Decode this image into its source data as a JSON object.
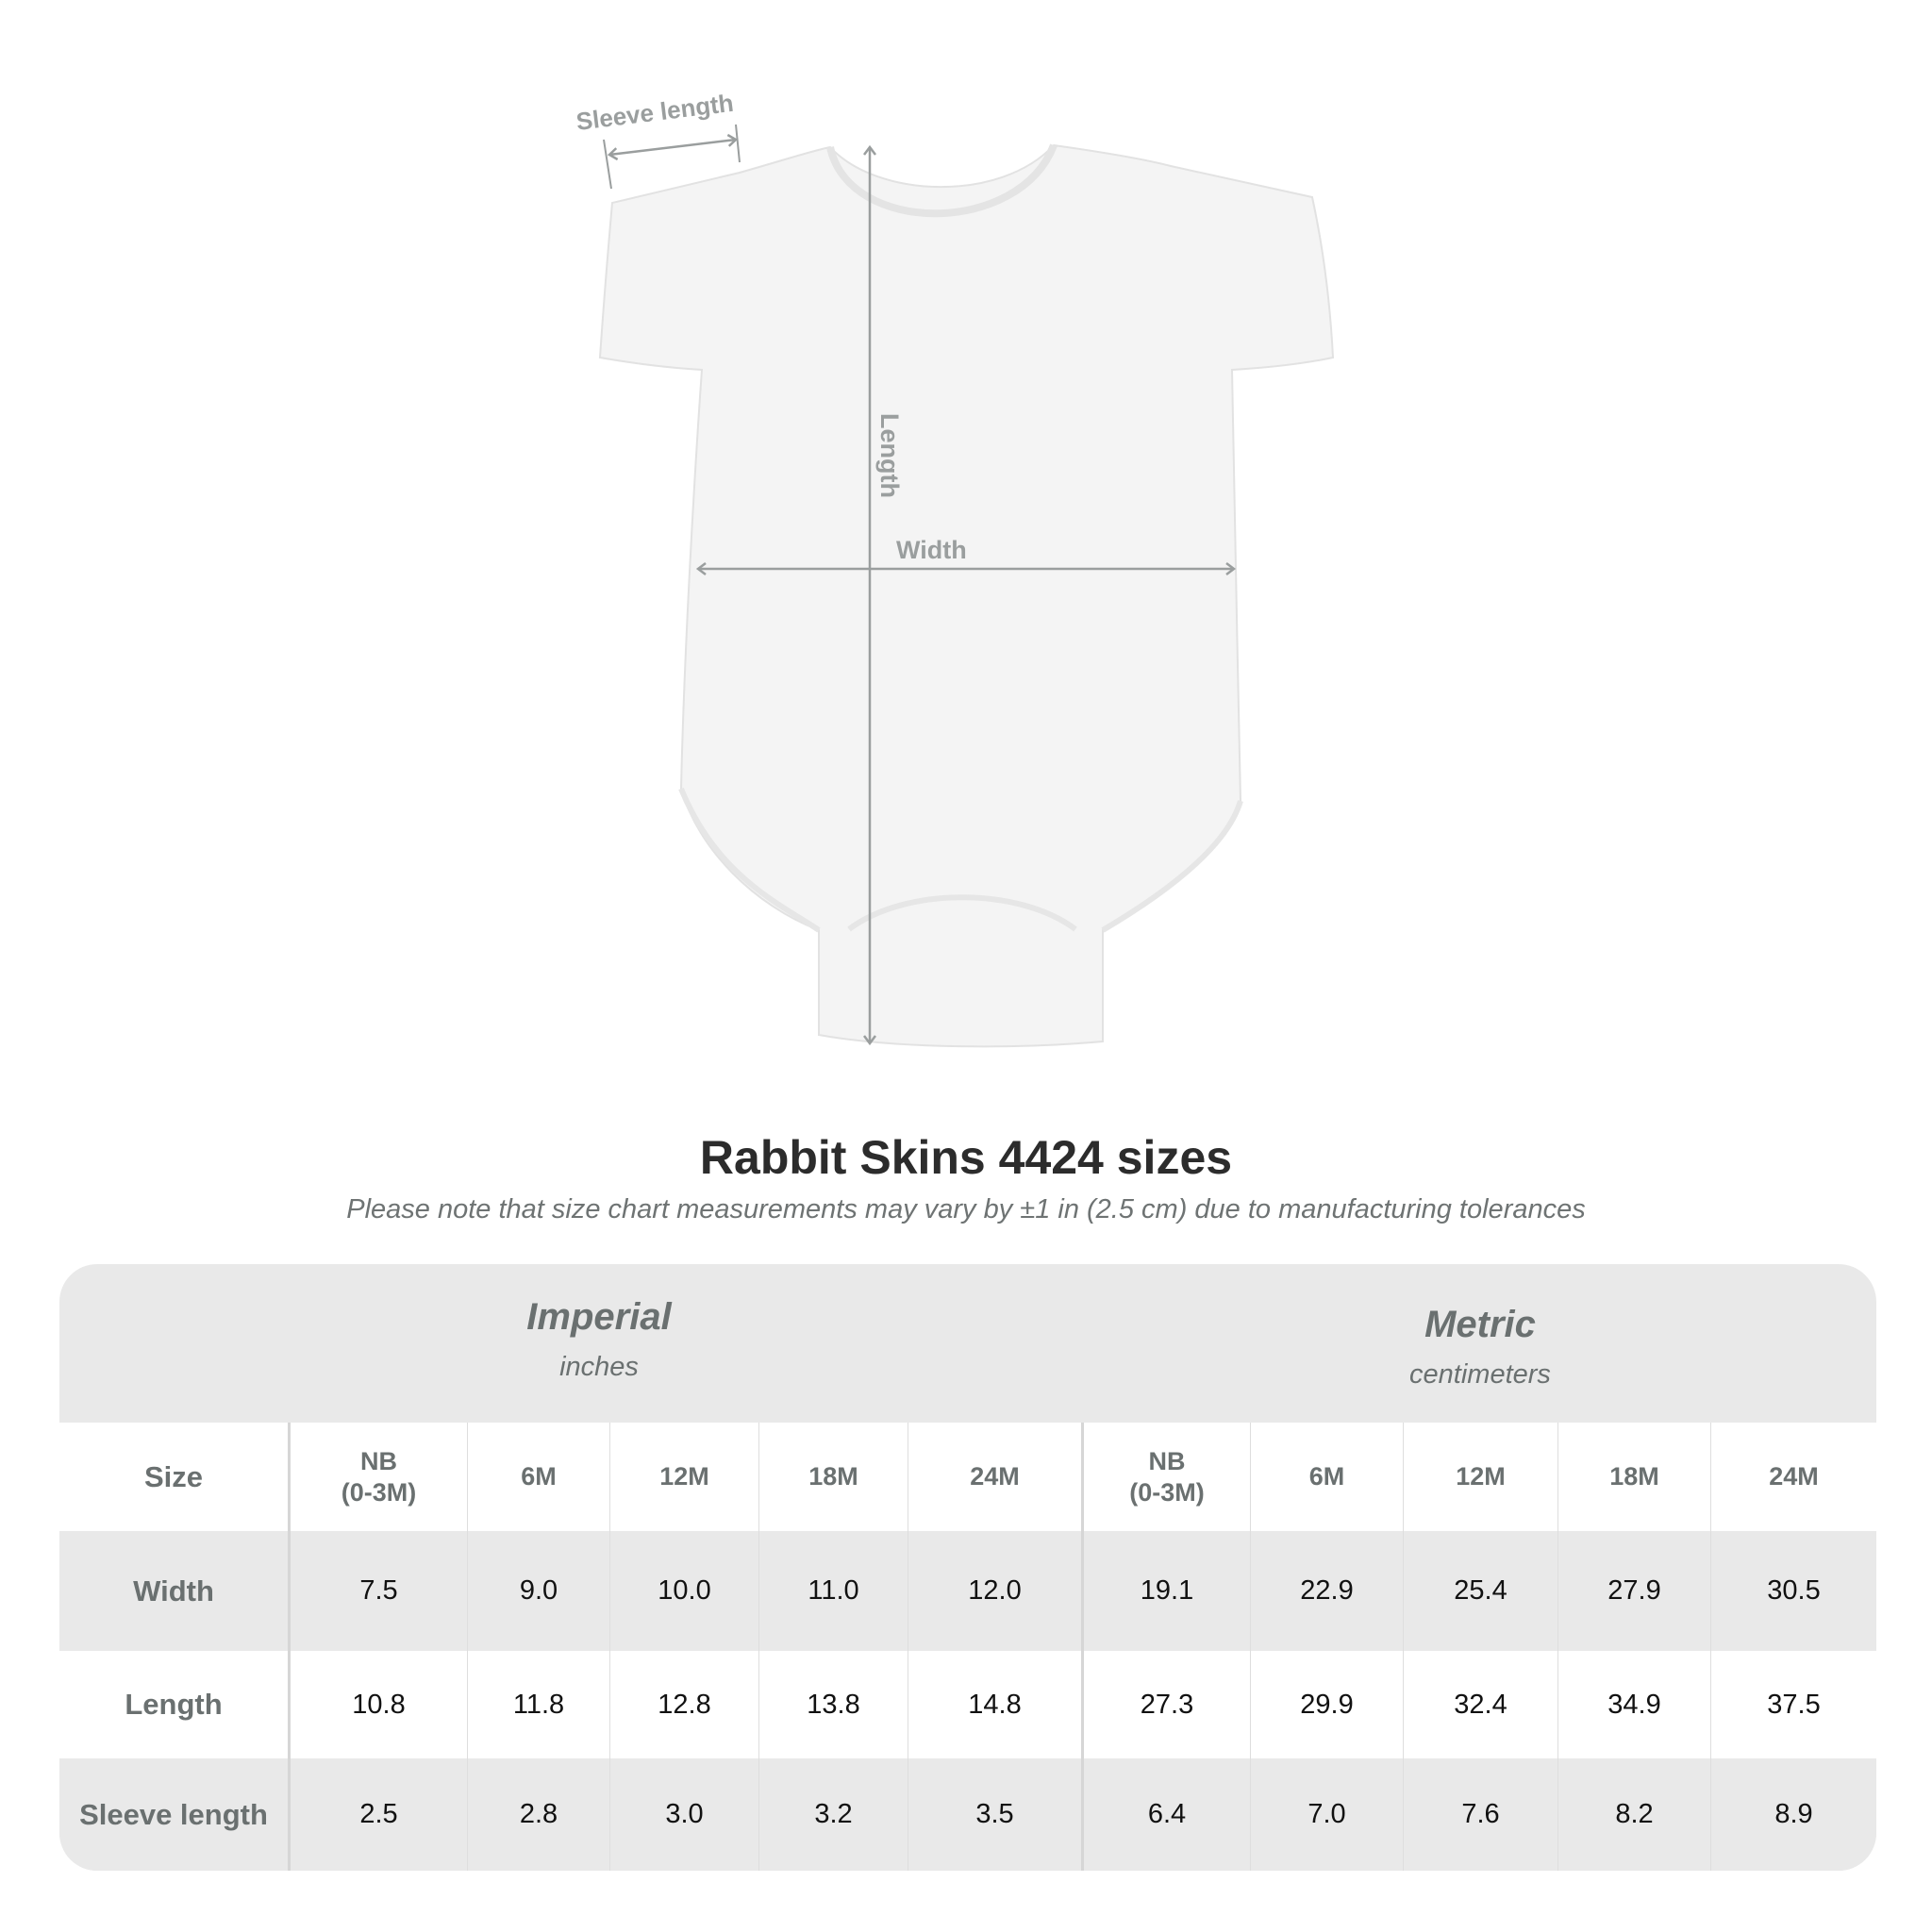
{
  "diagram": {
    "labels": {
      "sleeve": "Sleeve length",
      "length": "Length",
      "width": "Width"
    },
    "colors": {
      "garment": "#f4f4f4",
      "arrows": "#9a9e9e"
    }
  },
  "title": "Rabbit Skins 4424 sizes",
  "subtitle": "Please note that size chart measurements may vary by ±1 in (2.5 cm) due to manufacturing tolerances",
  "table": {
    "groups": [
      {
        "name": "Imperial",
        "unit": "inches"
      },
      {
        "name": "Metric",
        "unit": "centimeters"
      }
    ],
    "size_label": "Size",
    "sizes": [
      "NB\n(0-3M)",
      "6M",
      "12M",
      "18M",
      "24M"
    ],
    "rows": [
      {
        "label": "Width",
        "imperial": [
          "7.5",
          "9.0",
          "10.0",
          "11.0",
          "12.0"
        ],
        "metric": [
          "19.1",
          "22.9",
          "25.4",
          "27.9",
          "30.5"
        ]
      },
      {
        "label": "Length",
        "imperial": [
          "10.8",
          "11.8",
          "12.8",
          "13.8",
          "14.8"
        ],
        "metric": [
          "27.3",
          "29.9",
          "32.4",
          "34.9",
          "37.5"
        ]
      },
      {
        "label": "Sleeve length",
        "imperial": [
          "2.5",
          "2.8",
          "3.0",
          "3.2",
          "3.5"
        ],
        "metric": [
          "6.4",
          "7.0",
          "7.6",
          "8.2",
          "8.9"
        ]
      }
    ]
  }
}
